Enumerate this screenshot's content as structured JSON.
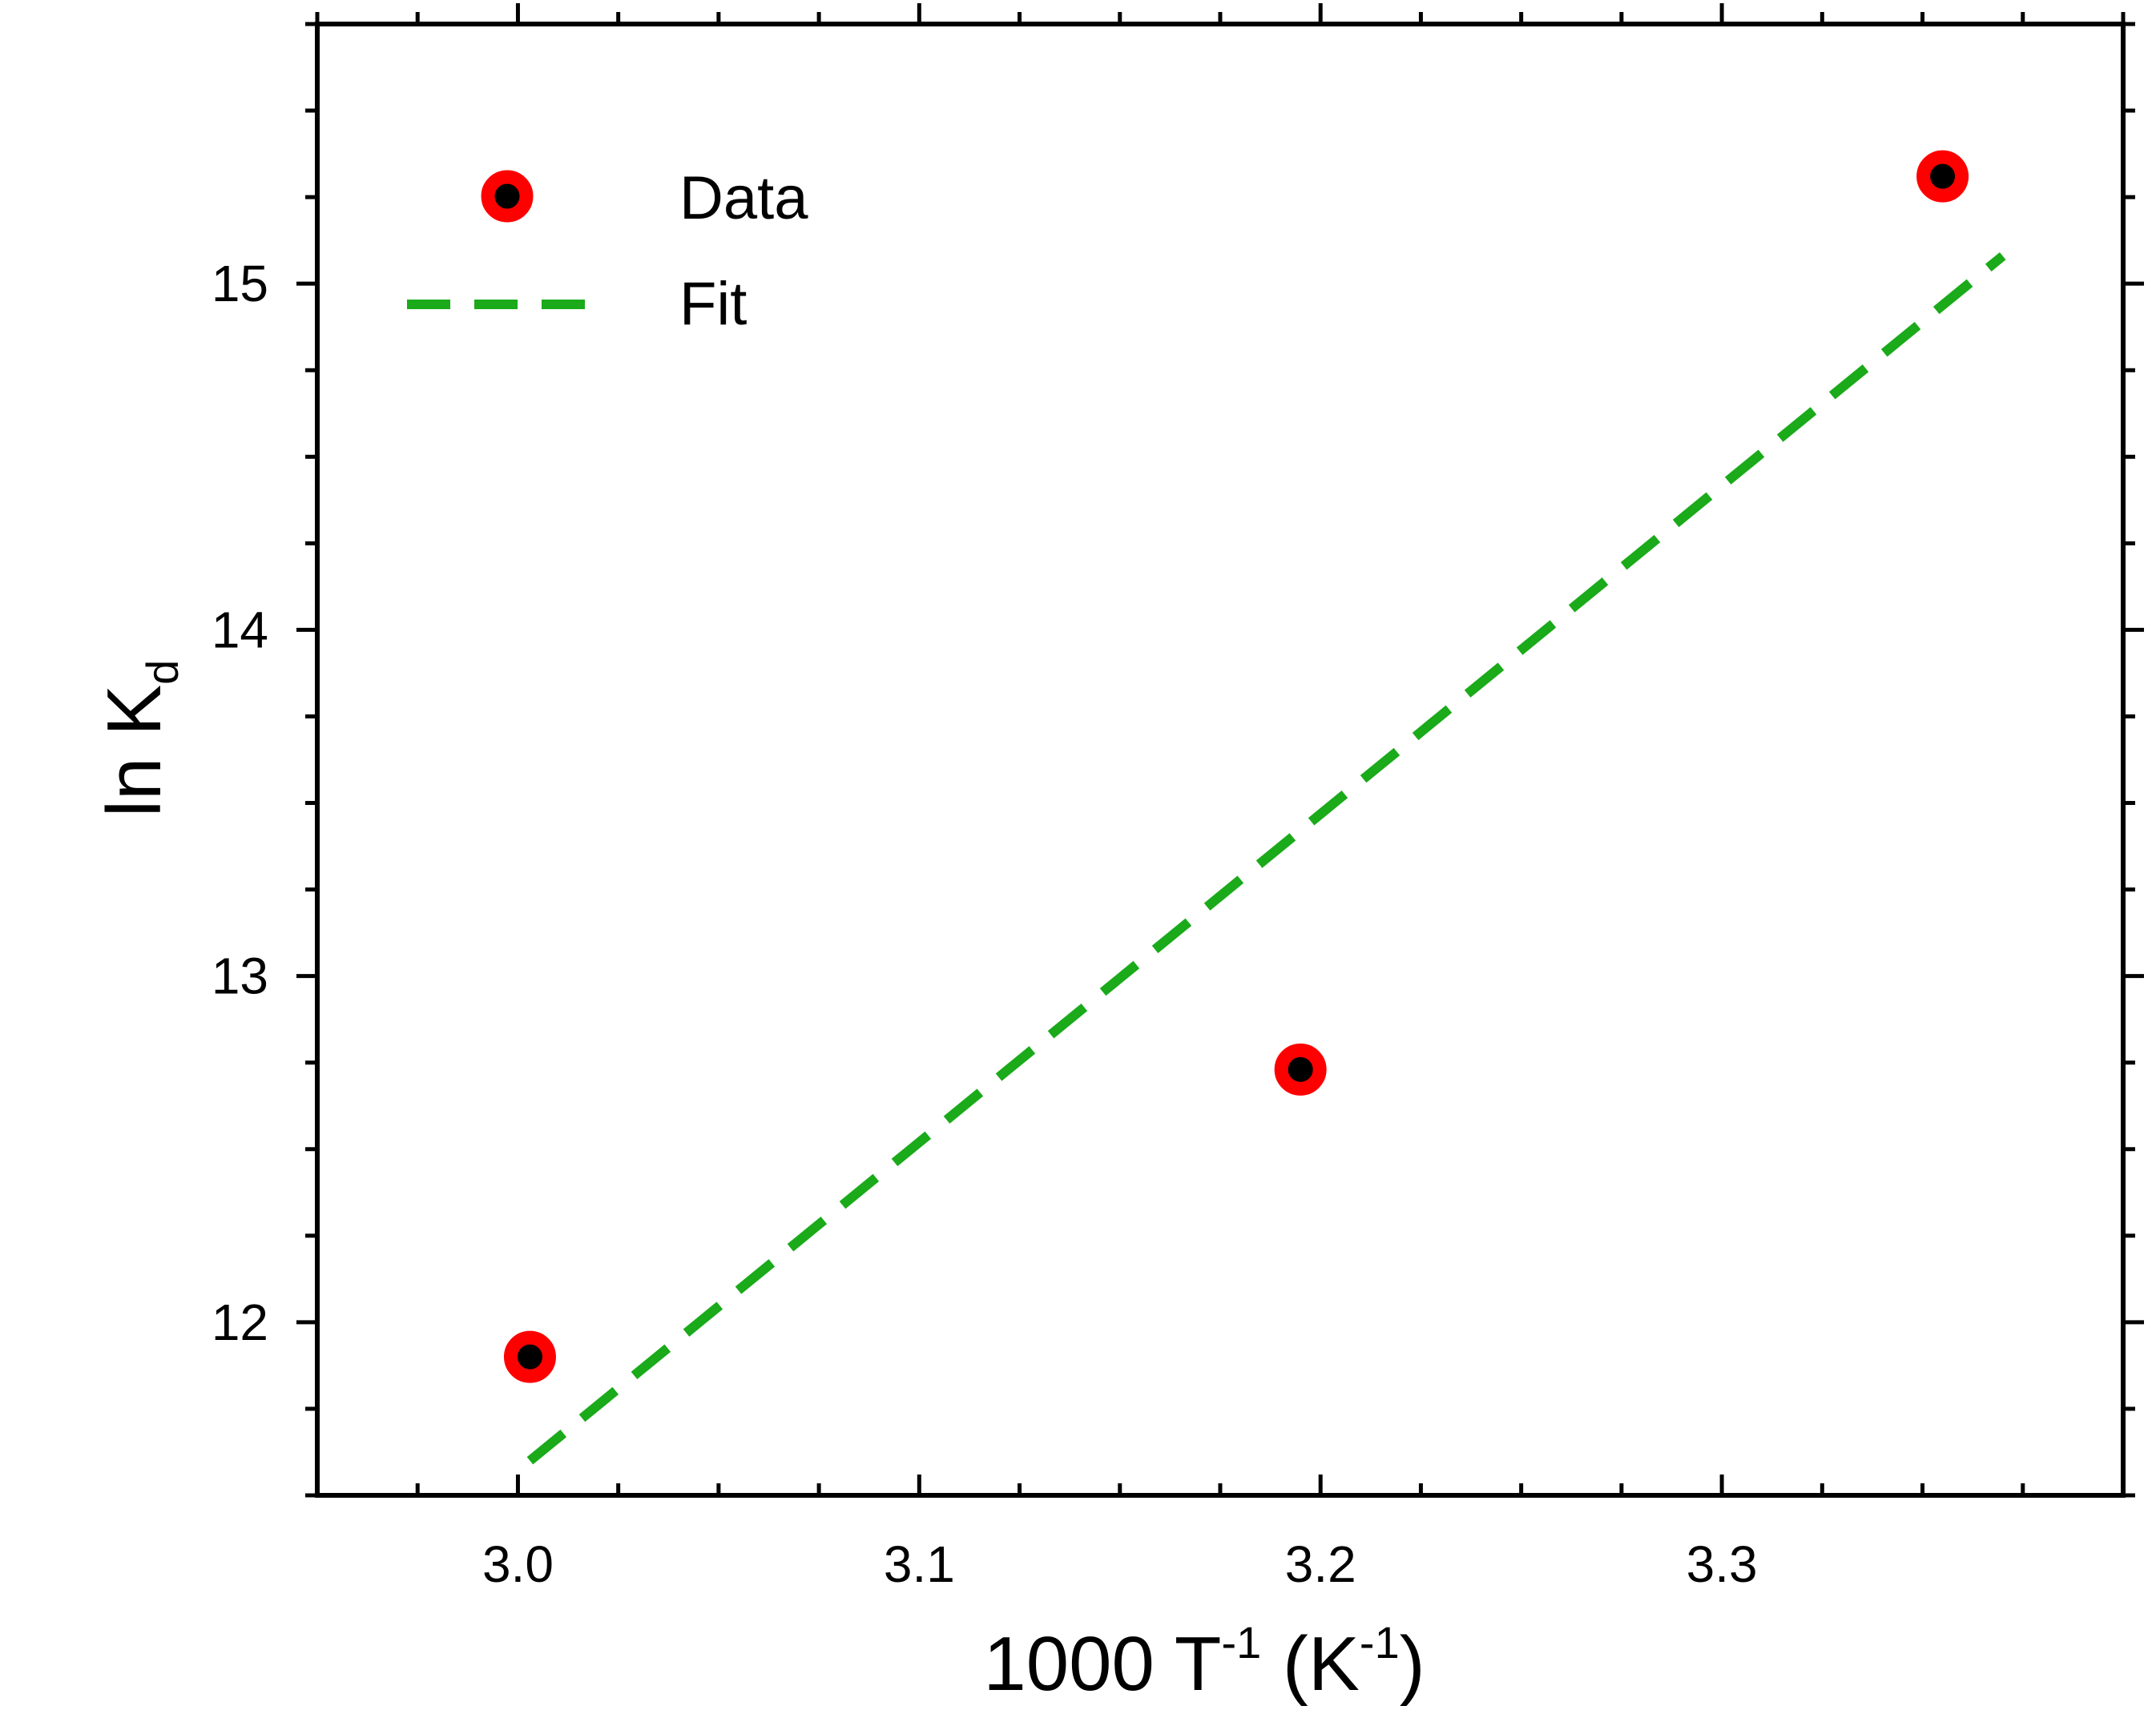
{
  "chart_data": {
    "type": "scatter",
    "title": "",
    "xlabel": {
      "main": "1000 T",
      "sup1": "-1",
      "mid": " (K",
      "sup2": "-1",
      "end": ")"
    },
    "ylabel": {
      "main": "ln K",
      "sub": "d"
    },
    "xlim": [
      2.95,
      3.4
    ],
    "ylim": [
      11.5,
      15.75
    ],
    "xticks": [
      3.0,
      3.1,
      3.2,
      3.3
    ],
    "xtick_labels": [
      "3.0",
      "3.1",
      "3.2",
      "3.3"
    ],
    "yticks": [
      12,
      13,
      14,
      15
    ],
    "ytick_labels": [
      "12",
      "13",
      "14",
      "15"
    ],
    "x_minor_step": 0.025,
    "y_minor_step": 0.25,
    "grid": false,
    "legend": {
      "position": "top-left",
      "entries": [
        {
          "label": "Data",
          "kind": "marker"
        },
        {
          "label": "Fit",
          "kind": "dashed-line"
        }
      ]
    },
    "series": [
      {
        "name": "Data",
        "kind": "scatter",
        "x": [
          3.003,
          3.195,
          3.355
        ],
        "y": [
          11.9,
          12.73,
          15.31
        ],
        "marker_face": "#000000",
        "marker_edge": "#ff0000"
      },
      {
        "name": "Fit",
        "kind": "line",
        "style": "dashed",
        "x": [
          3.003,
          3.37
        ],
        "y": [
          11.6,
          15.08
        ],
        "color": "#1aaa1a"
      }
    ]
  }
}
